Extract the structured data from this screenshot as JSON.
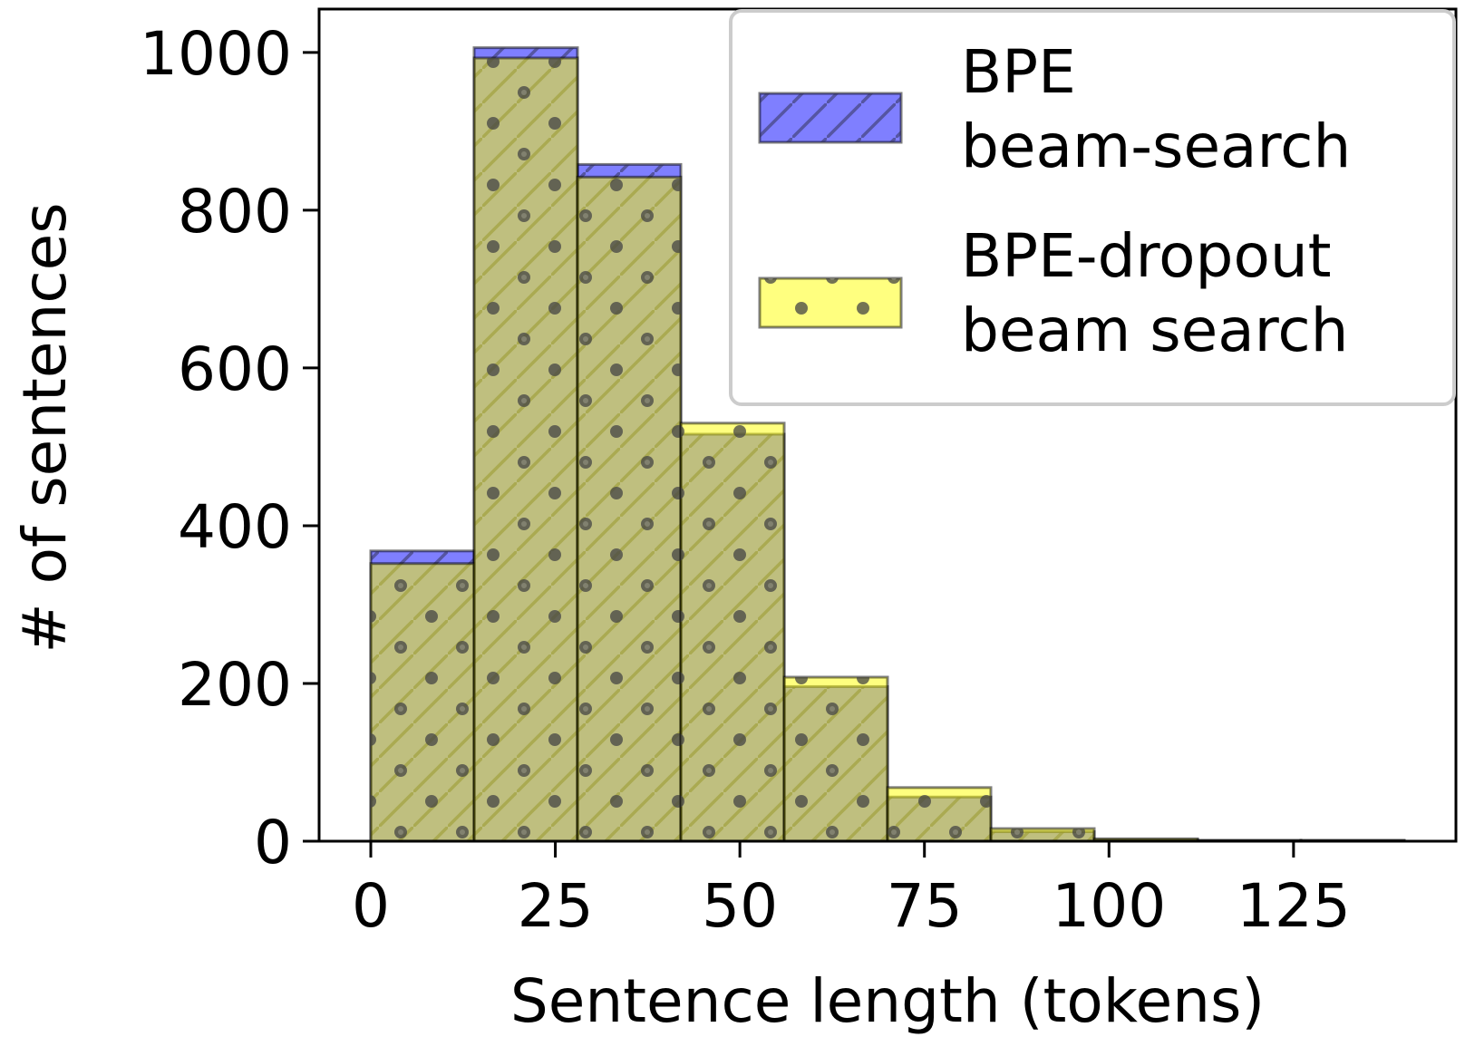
{
  "chart_data": {
    "type": "bar",
    "xlabel": "Sentence length (tokens)",
    "ylabel": "# of sentences",
    "xlim": [
      -7,
      147
    ],
    "ylim": [
      0,
      1055
    ],
    "x_ticks": [
      0,
      25,
      50,
      75,
      100,
      125
    ],
    "y_ticks": [
      0,
      200,
      400,
      600,
      800,
      1000
    ],
    "bin_edges": [
      0,
      14,
      28,
      42,
      56,
      70,
      84,
      98,
      112,
      126,
      140
    ],
    "grid": false,
    "legend_position": "top-right",
    "series": [
      {
        "name": "BPE\nbeam-search",
        "color": "#0000ff",
        "hatch": "diagonal",
        "values": [
          368,
          1006,
          858,
          516,
          196,
          56,
          12,
          2,
          1,
          1
        ]
      },
      {
        "name": "BPE-dropout\nbeam search",
        "color": "#ffff00",
        "hatch": "dots",
        "values": [
          352,
          993,
          842,
          530,
          208,
          68,
          16,
          3,
          1,
          1
        ]
      }
    ]
  }
}
